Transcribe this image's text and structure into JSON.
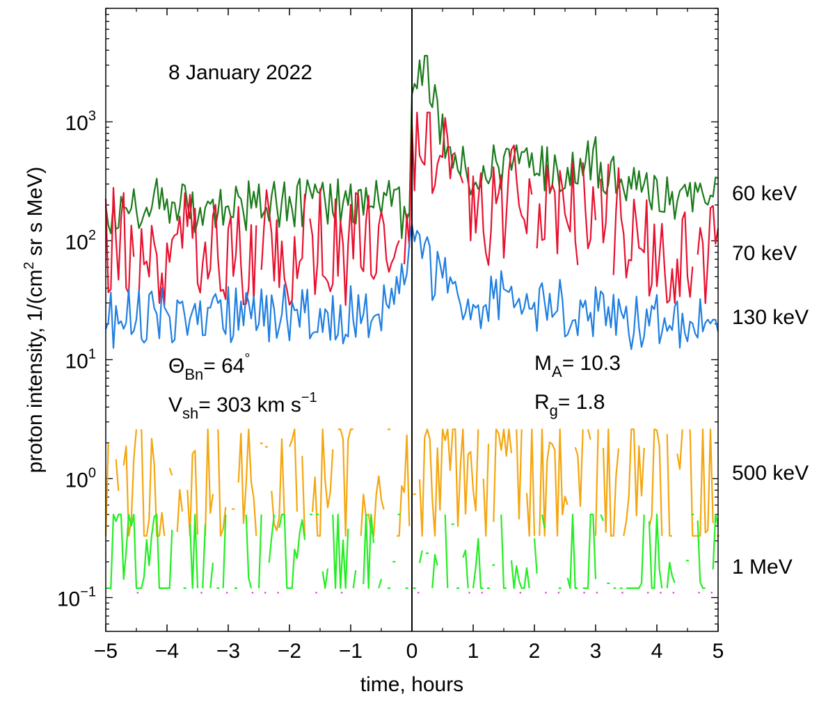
{
  "chart_data": {
    "type": "line",
    "title": "8 January 2022",
    "xlabel": "time, hours",
    "ylabel": {
      "main": "proton intensity, 1/(cm",
      "sup": "2",
      "rest": " sr s MeV)"
    },
    "xlim": [
      -5,
      5
    ],
    "ylim": [
      0.052,
      9000
    ],
    "yscale": "log",
    "x_ticks": [
      -5,
      -4,
      -3,
      -2,
      -1,
      0,
      1,
      2,
      3,
      4,
      5
    ],
    "x_tick_labels": [
      "−5",
      "−4",
      "−3",
      "−2",
      "−1",
      "0",
      "1",
      "2",
      "3",
      "4",
      "5"
    ],
    "y_ticks": [
      {
        "value": 0.1,
        "base": "10",
        "exp": "−1"
      },
      {
        "value": 1,
        "base": "10",
        "exp": "0"
      },
      {
        "value": 10,
        "base": "10",
        "exp": "1"
      },
      {
        "value": 100,
        "base": "10",
        "exp": "2"
      },
      {
        "value": 1000,
        "base": "10",
        "exp": "3"
      }
    ],
    "shock_time": 0,
    "annotations": {
      "theta_bn": {
        "sym": "Θ",
        "sub": "Bn",
        "text": "= 64",
        "deg": "°"
      },
      "v_sh": {
        "sym": "V",
        "sub": "sh",
        "text": "= 303 km s",
        "sup": "−1"
      },
      "m_a": {
        "sym": "M",
        "sub": "A",
        "text": "= 10.3"
      },
      "r_g": {
        "sym": "R",
        "sub": "g",
        "text": "= 1.8"
      }
    },
    "series": [
      {
        "name": "60 keV",
        "color": "#1a7a1a",
        "min": 80,
        "max": 3600,
        "anchors": [
          [
            -5,
            180
          ],
          [
            -4.5,
            210
          ],
          [
            -4,
            200
          ],
          [
            -3,
            190
          ],
          [
            -2,
            200
          ],
          [
            -1,
            210
          ],
          [
            -0.5,
            250
          ],
          [
            -0.15,
            160
          ],
          [
            -0.05,
            180
          ],
          [
            0,
            2300
          ],
          [
            0.1,
            2300
          ],
          [
            0.2,
            3200
          ],
          [
            0.35,
            1600
          ],
          [
            0.5,
            900
          ],
          [
            0.7,
            450
          ],
          [
            1,
            330
          ],
          [
            1.5,
            430
          ],
          [
            2,
            420
          ],
          [
            2.5,
            400
          ],
          [
            3,
            470
          ],
          [
            3.5,
            300
          ],
          [
            4,
            230
          ],
          [
            4.5,
            230
          ],
          [
            5,
            230
          ]
        ],
        "noise": 0.22,
        "gap_prob": 0
      },
      {
        "name": "70 keV",
        "color": "#e8102e",
        "min": 20,
        "max": 1200,
        "anchors": [
          [
            -5,
            100
          ],
          [
            -4,
            85
          ],
          [
            -3,
            90
          ],
          [
            -2,
            85
          ],
          [
            -1,
            90
          ],
          [
            -0.5,
            70
          ],
          [
            -0.1,
            95
          ],
          [
            0,
            600
          ],
          [
            0.1,
            900
          ],
          [
            0.2,
            1000
          ],
          [
            0.35,
            700
          ],
          [
            0.5,
            400
          ],
          [
            0.7,
            200
          ],
          [
            1,
            150
          ],
          [
            1.5,
            200
          ],
          [
            2,
            210
          ],
          [
            2.5,
            160
          ],
          [
            3,
            200
          ],
          [
            3.5,
            140
          ],
          [
            4,
            85
          ],
          [
            4.5,
            70
          ],
          [
            5,
            70
          ]
        ],
        "noise": 0.5,
        "gap_prob": 0.04
      },
      {
        "name": "130 keV",
        "color": "#1f7fe0",
        "min": 10,
        "max": 140,
        "anchors": [
          [
            -5,
            22
          ],
          [
            -4,
            23
          ],
          [
            -3,
            24
          ],
          [
            -2,
            24
          ],
          [
            -1,
            24
          ],
          [
            -0.5,
            25
          ],
          [
            -0.3,
            28
          ],
          [
            -0.1,
            55
          ],
          [
            0,
            100
          ],
          [
            0.1,
            115
          ],
          [
            0.3,
            55
          ],
          [
            0.6,
            40
          ],
          [
            1,
            30
          ],
          [
            1.5,
            35
          ],
          [
            2,
            30
          ],
          [
            2.5,
            27
          ],
          [
            3,
            25
          ],
          [
            3.5,
            22
          ],
          [
            4,
            20
          ],
          [
            4.5,
            18
          ],
          [
            5,
            19
          ]
        ],
        "noise": 0.25,
        "gap_prob": 0
      },
      {
        "name": "500 keV",
        "color": "#f5a60e",
        "min": 0.33,
        "max": 2.6,
        "anchors": [
          [
            -5,
            0.9
          ],
          [
            0,
            0.9
          ],
          [
            5,
            0.9
          ]
        ],
        "noise": 0.7,
        "gap_prob": 0.16
      },
      {
        "name": "1 MeV",
        "color": "#22ee22",
        "min": 0.12,
        "max": 0.5,
        "anchors": [
          [
            -5,
            0.18
          ],
          [
            0,
            0.18
          ],
          [
            5,
            0.18
          ]
        ],
        "noise": 0.75,
        "gap_prob": 0.3
      },
      {
        "name": "",
        "color": "#cc55cc",
        "min": 0.1,
        "max": 0.12,
        "anchors": [
          [
            -5,
            0.11
          ],
          [
            5,
            0.11
          ]
        ],
        "noise": 0,
        "gap_prob": 0,
        "dotted": true
      }
    ]
  }
}
